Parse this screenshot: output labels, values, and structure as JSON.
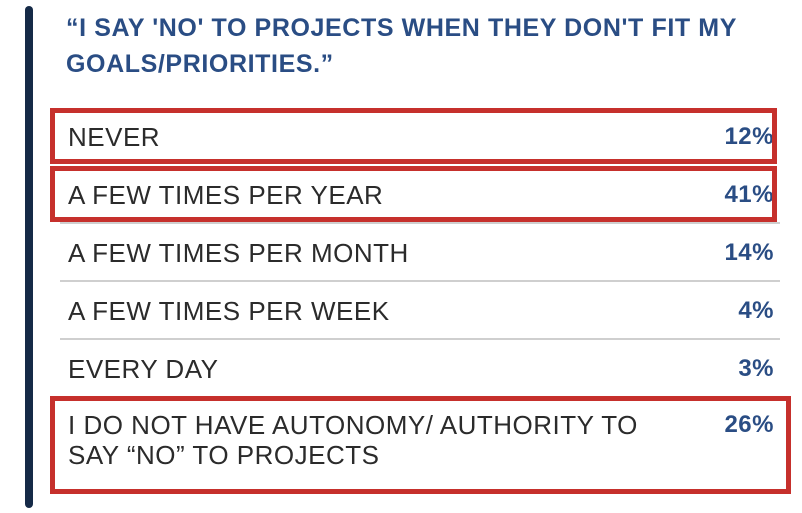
{
  "chart_data": {
    "type": "table",
    "title": "“I SAY 'NO' TO PROJECTS WHEN THEY DON'T FIT MY GOALS/PRIORITIES.”",
    "rows": [
      {
        "label": "NEVER",
        "value": "12%",
        "percent": 12,
        "highlighted": true
      },
      {
        "label": "A FEW TIMES PER YEAR",
        "value": "41%",
        "percent": 41,
        "highlighted": true
      },
      {
        "label": "A FEW TIMES PER MONTH",
        "value": "14%",
        "percent": 14,
        "highlighted": false
      },
      {
        "label": "A FEW TIMES PER WEEK",
        "value": "4%",
        "percent": 4,
        "highlighted": false
      },
      {
        "label": "EVERY DAY",
        "value": "3%",
        "percent": 3,
        "highlighted": false
      },
      {
        "label": "I DO NOT HAVE AUTONOMY/ AUTHORITY TO SAY “NO” TO PROJECTS",
        "value": "26%",
        "percent": 26,
        "highlighted": true
      }
    ]
  },
  "colors": {
    "title": "#2a4d84",
    "value": "#2a4d84",
    "label": "#2b2b2b",
    "accent_bar": "#152a47",
    "highlight_border": "#c6302c",
    "separator": "#cfcfcf"
  }
}
